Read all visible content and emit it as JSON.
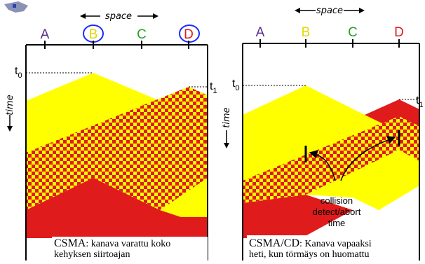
{
  "left": {
    "space_label": "space",
    "nodes": [
      {
        "label": "A",
        "color": "#5a2d8c",
        "circled": false
      },
      {
        "label": "B",
        "color": "#e6d600",
        "circled": true
      },
      {
        "label": "C",
        "color": "#2aa02a",
        "circled": false
      },
      {
        "label": "D",
        "color": "#e01b1b",
        "circled": true
      }
    ],
    "t0_label": "t",
    "t0_sub": "0",
    "t1_label": "t",
    "t1_sub": "1",
    "time_label": "time",
    "caption_title": "CSMA",
    "caption_rest": ": kanava varattu koko",
    "caption_line2": "kehyksen siirtoajan"
  },
  "right": {
    "space_label": "space",
    "nodes": [
      {
        "label": "A",
        "color": "#5a2d8c"
      },
      {
        "label": "B",
        "color": "#e6d600"
      },
      {
        "label": "C",
        "color": "#2aa02a"
      },
      {
        "label": "D",
        "color": "#e01b1b"
      }
    ],
    "t0_label": "t",
    "t0_sub": "0",
    "t1_label": "t",
    "t1_sub": "1",
    "time_label": "time",
    "collision_label_1": "collision",
    "collision_label_2": "detect/abort",
    "collision_label_3": "time",
    "caption_title": "CSMA/CD",
    "caption_rest": ": Kanava vapaaksi",
    "caption_line2": "heti, kun törmäys on huomattu"
  },
  "colors": {
    "yellow": "#ffff00",
    "red": "#e01b1b",
    "circle": "#1a2aff"
  }
}
